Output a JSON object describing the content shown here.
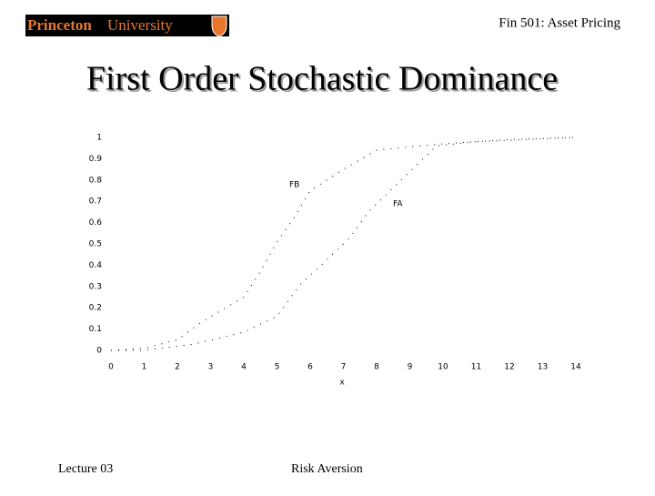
{
  "header": {
    "logo_left": "Princeton",
    "logo_right": "University",
    "course": "Fin 501: Asset Pricing"
  },
  "title": "First Order Stochastic Dominance",
  "chart_data": {
    "type": "line",
    "x_label": "x",
    "xlim": [
      0,
      14
    ],
    "xticks": [
      0,
      1,
      2,
      3,
      4,
      5,
      6,
      7,
      8,
      9,
      10,
      11,
      12,
      13,
      14
    ],
    "ylim": [
      0,
      1
    ],
    "yticks": [
      0,
      0.1,
      0.2,
      0.3,
      0.4,
      0.5,
      0.6,
      0.7,
      0.8,
      0.9,
      1
    ],
    "series": [
      {
        "name": "FB",
        "color": "#000000",
        "x": [
          0,
          1,
          2,
          2.7,
          4,
          4.5,
          5,
          5.5,
          6,
          7,
          8,
          10,
          12,
          14
        ],
        "values": [
          0,
          0.01,
          0.05,
          0.13,
          0.25,
          0.37,
          0.51,
          0.62,
          0.75,
          0.85,
          0.94,
          0.97,
          0.99,
          1
        ]
      },
      {
        "name": "FA",
        "color": "#000000",
        "x": [
          0,
          1,
          2.5,
          4,
          5,
          5.7,
          6.4,
          7.2,
          7.75,
          9,
          9.8,
          11,
          14
        ],
        "values": [
          0,
          0,
          0.03,
          0.085,
          0.16,
          0.31,
          0.41,
          0.53,
          0.65,
          0.84,
          0.96,
          0.98,
          1
        ]
      }
    ]
  },
  "footer": {
    "left": "Lecture 03",
    "center": "Risk Aversion"
  }
}
